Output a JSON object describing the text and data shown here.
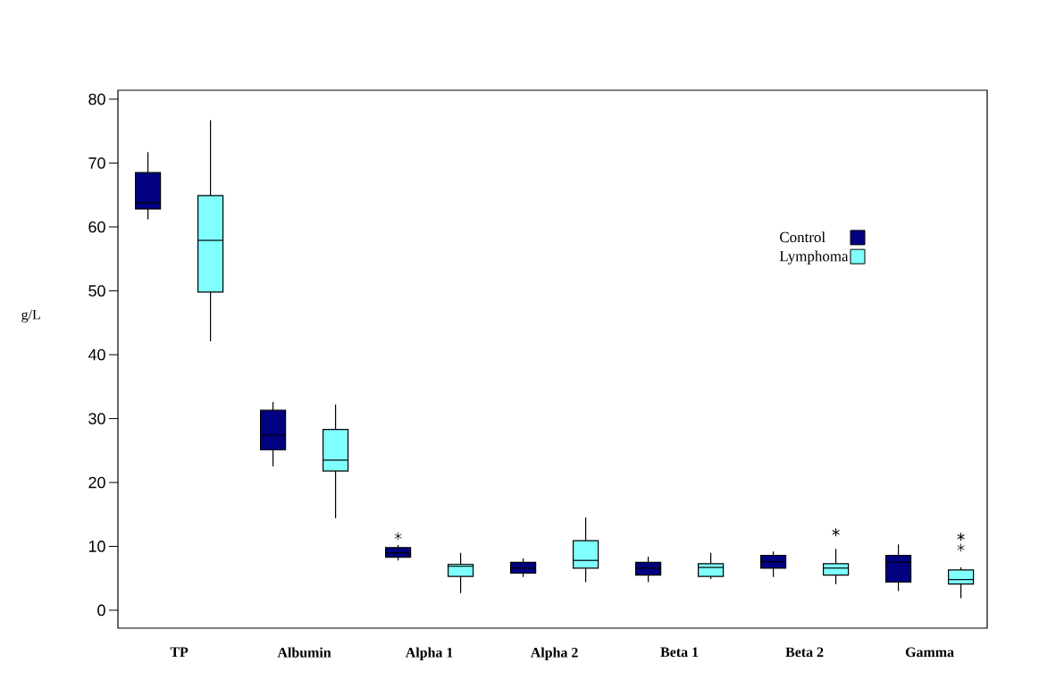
{
  "chart_data": {
    "type": "box",
    "ylabel": "g/L",
    "categories": [
      "TP",
      "Albumin",
      "Alpha 1",
      "Alpha 2",
      "Beta 1",
      "Beta 2",
      "Gamma"
    ],
    "ylim": [
      -2.8,
      81.4
    ],
    "yticks": [
      0,
      10,
      20,
      30,
      40,
      50,
      60,
      70,
      80
    ],
    "grid": false,
    "legend": "top right",
    "series": [
      {
        "name": "Control",
        "color": "#000080",
        "boxes": [
          {
            "low": 61.2,
            "q1": 62.8,
            "median": 63.8,
            "q3": 68.5,
            "high": 71.7
          },
          {
            "low": 22.5,
            "q1": 25.1,
            "median": 27.4,
            "q3": 31.3,
            "high": 32.6
          },
          {
            "low": 7.8,
            "q1": 8.3,
            "median": 9.0,
            "q3": 9.8,
            "high": 10.2,
            "outliers": [
              11.6
            ]
          },
          {
            "low": 5.2,
            "q1": 5.8,
            "median": 6.6,
            "q3": 7.5,
            "high": 8.1
          },
          {
            "low": 4.4,
            "q1": 5.5,
            "median": 6.6,
            "q3": 7.5,
            "high": 8.4
          },
          {
            "low": 5.2,
            "q1": 6.6,
            "median": 7.6,
            "q3": 8.6,
            "high": 9.2
          },
          {
            "low": 3.0,
            "q1": 4.4,
            "median": 7.5,
            "q3": 8.6,
            "high": 10.3
          }
        ]
      },
      {
        "name": "Lymphoma",
        "color": "#80ffff",
        "boxes": [
          {
            "low": 42.1,
            "q1": 49.8,
            "median": 57.9,
            "q3": 64.9,
            "high": 76.7
          },
          {
            "low": 14.4,
            "q1": 21.8,
            "median": 23.5,
            "q3": 28.3,
            "high": 32.2
          },
          {
            "low": 2.7,
            "q1": 5.3,
            "median": 6.9,
            "q3": 7.2,
            "high": 9.0
          },
          {
            "low": 4.4,
            "q1": 6.6,
            "median": 7.8,
            "q3": 10.9,
            "high": 14.5
          },
          {
            "low": 4.9,
            "q1": 5.3,
            "median": 6.7,
            "q3": 7.3,
            "high": 9.0
          },
          {
            "low": 4.1,
            "q1": 5.5,
            "median": 6.6,
            "q3": 7.3,
            "high": 9.6,
            "outliers": [
              12.2,
              12.2
            ]
          },
          {
            "low": 1.9,
            "q1": 4.1,
            "median": 4.8,
            "q3": 6.3,
            "high": 6.7,
            "outliers": [
              11.5,
              11.5,
              9.8
            ]
          }
        ]
      }
    ]
  }
}
